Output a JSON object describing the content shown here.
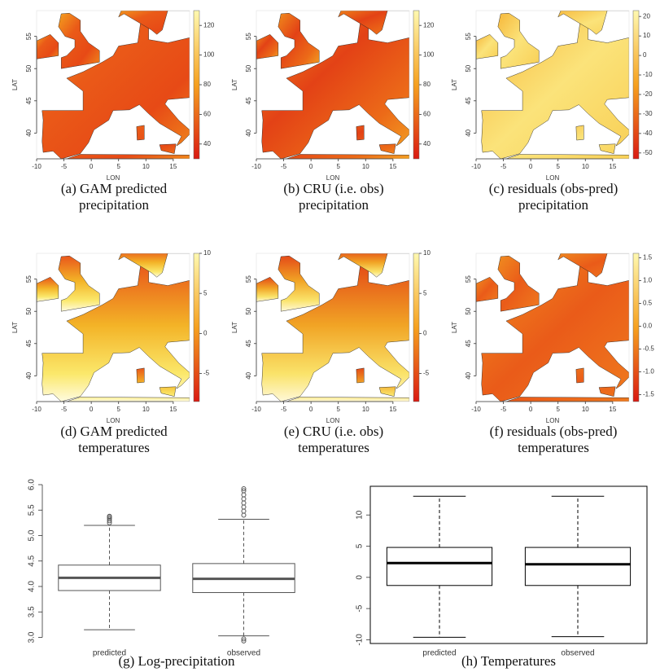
{
  "figure": {
    "maps": [
      {
        "caption": [
          "(a) GAM predicted",
          "precipitation"
        ],
        "xlabel": "LON",
        "ylabel": "LAT",
        "xlim": [
          -10,
          18
        ],
        "xticks": [
          -10,
          -5,
          0,
          5,
          10,
          15
        ],
        "ylim": [
          36,
          59
        ],
        "yticks": [
          40,
          45,
          50,
          55
        ],
        "colorbar": {
          "lim": [
            30,
            130
          ],
          "ticks": [
            40,
            60,
            80,
            100,
            120
          ]
        }
      },
      {
        "caption": [
          "(b) CRU (i.e. obs)",
          "precipitation"
        ],
        "xlabel": "LON",
        "ylabel": "LAT",
        "xlim": [
          -10,
          18
        ],
        "xticks": [
          -10,
          -5,
          0,
          5,
          10,
          15
        ],
        "ylim": [
          36,
          59
        ],
        "yticks": [
          40,
          45,
          50,
          55
        ],
        "colorbar": {
          "lim": [
            30,
            130
          ],
          "ticks": [
            40,
            60,
            80,
            100,
            120
          ]
        }
      },
      {
        "caption": [
          "(c) residuals (obs-pred)",
          "precipitation"
        ],
        "xlabel": "LON",
        "ylabel": "LAT",
        "xlim": [
          -10,
          18
        ],
        "xticks": [
          -10,
          -5,
          0,
          5,
          10,
          15
        ],
        "ylim": [
          36,
          59
        ],
        "yticks": [
          40,
          45,
          50,
          55
        ],
        "colorbar": {
          "lim": [
            -53,
            23
          ],
          "ticks": [
            -50,
            -40,
            -30,
            -20,
            -10,
            0,
            10,
            20
          ]
        }
      },
      {
        "caption": [
          "(d) GAM predicted",
          "temperatures"
        ],
        "xlabel": "LON",
        "ylabel": "LAT",
        "xlim": [
          -10,
          18
        ],
        "xticks": [
          -10,
          -5,
          0,
          5,
          10,
          15
        ],
        "ylim": [
          36,
          59
        ],
        "yticks": [
          40,
          45,
          50,
          55
        ],
        "colorbar": {
          "lim": [
            -8.5,
            10
          ],
          "ticks": [
            -5,
            0,
            5,
            10
          ]
        }
      },
      {
        "caption": [
          "(e) CRU (i.e. obs)",
          "temperatures"
        ],
        "xlabel": "LON",
        "ylabel": "LAT",
        "xlim": [
          -10,
          18
        ],
        "xticks": [
          -10,
          -5,
          0,
          5,
          10,
          15
        ],
        "ylim": [
          36,
          59
        ],
        "yticks": [
          40,
          45,
          50,
          55
        ],
        "colorbar": {
          "lim": [
            -8.5,
            10
          ],
          "ticks": [
            -5,
            0,
            5,
            10
          ]
        }
      },
      {
        "caption": [
          "(f) residuals (obs-pred)",
          "temperatures"
        ],
        "xlabel": "LON",
        "ylabel": "LAT",
        "xlim": [
          -10,
          18
        ],
        "xticks": [
          -10,
          -5,
          0,
          5,
          10,
          15
        ],
        "ylim": [
          36,
          59
        ],
        "yticks": [
          40,
          45,
          50,
          55
        ],
        "colorbar": {
          "lim": [
            -1.65,
            1.6
          ],
          "ticks": [
            {
              "value": -1.5,
              "label": "-1.5"
            },
            {
              "value": -1,
              "label": "-1.0"
            },
            {
              "value": -0.5,
              "label": "-0.5"
            },
            {
              "value": 0,
              "label": "0.0"
            },
            {
              "value": 0.5,
              "label": "0.5"
            },
            {
              "value": 1,
              "label": "1.0"
            },
            {
              "value": 1.5,
              "label": "1.5"
            }
          ]
        }
      }
    ]
  },
  "chart_data": [
    {
      "type": "box",
      "caption": "(g) Log-precipitation",
      "categories": [
        "predicted",
        "observed"
      ],
      "boxes": [
        {
          "low": 3.15,
          "q1": 3.92,
          "median": 4.17,
          "q3": 4.42,
          "high": 5.2,
          "outliers": [
            5.25,
            5.29,
            5.33,
            5.36,
            5.38
          ]
        },
        {
          "low": 3.03,
          "q1": 3.88,
          "median": 4.15,
          "q3": 4.45,
          "high": 5.32,
          "outliers": [
            5.4,
            5.48,
            5.56,
            5.64,
            5.72,
            5.8,
            5.88,
            5.92,
            2.97,
            2.93
          ]
        }
      ],
      "ylim": [
        2.88,
        6.08
      ],
      "yticks": [
        {
          "value": 3,
          "label": "3.0"
        },
        3.5,
        {
          "value": 4,
          "label": "4.0"
        },
        4.5,
        {
          "value": 5,
          "label": "5.0"
        },
        5.5,
        {
          "value": 6,
          "label": "6.0"
        }
      ],
      "color": "#555555"
    },
    {
      "type": "box",
      "caption": "(h) Temperatures",
      "categories": [
        "predicted",
        "observed"
      ],
      "boxes": [
        {
          "low": -9.6,
          "q1": -1.3,
          "median": 2.3,
          "q3": 4.8,
          "high": 13,
          "outliers": []
        },
        {
          "low": -9.5,
          "q1": -1.3,
          "median": 2.1,
          "q3": 4.8,
          "high": 13,
          "outliers": []
        }
      ],
      "ylim": [
        -10.6,
        14.6
      ],
      "yticks": [
        -10,
        -5,
        0,
        5,
        10
      ],
      "color": "#000000"
    }
  ]
}
